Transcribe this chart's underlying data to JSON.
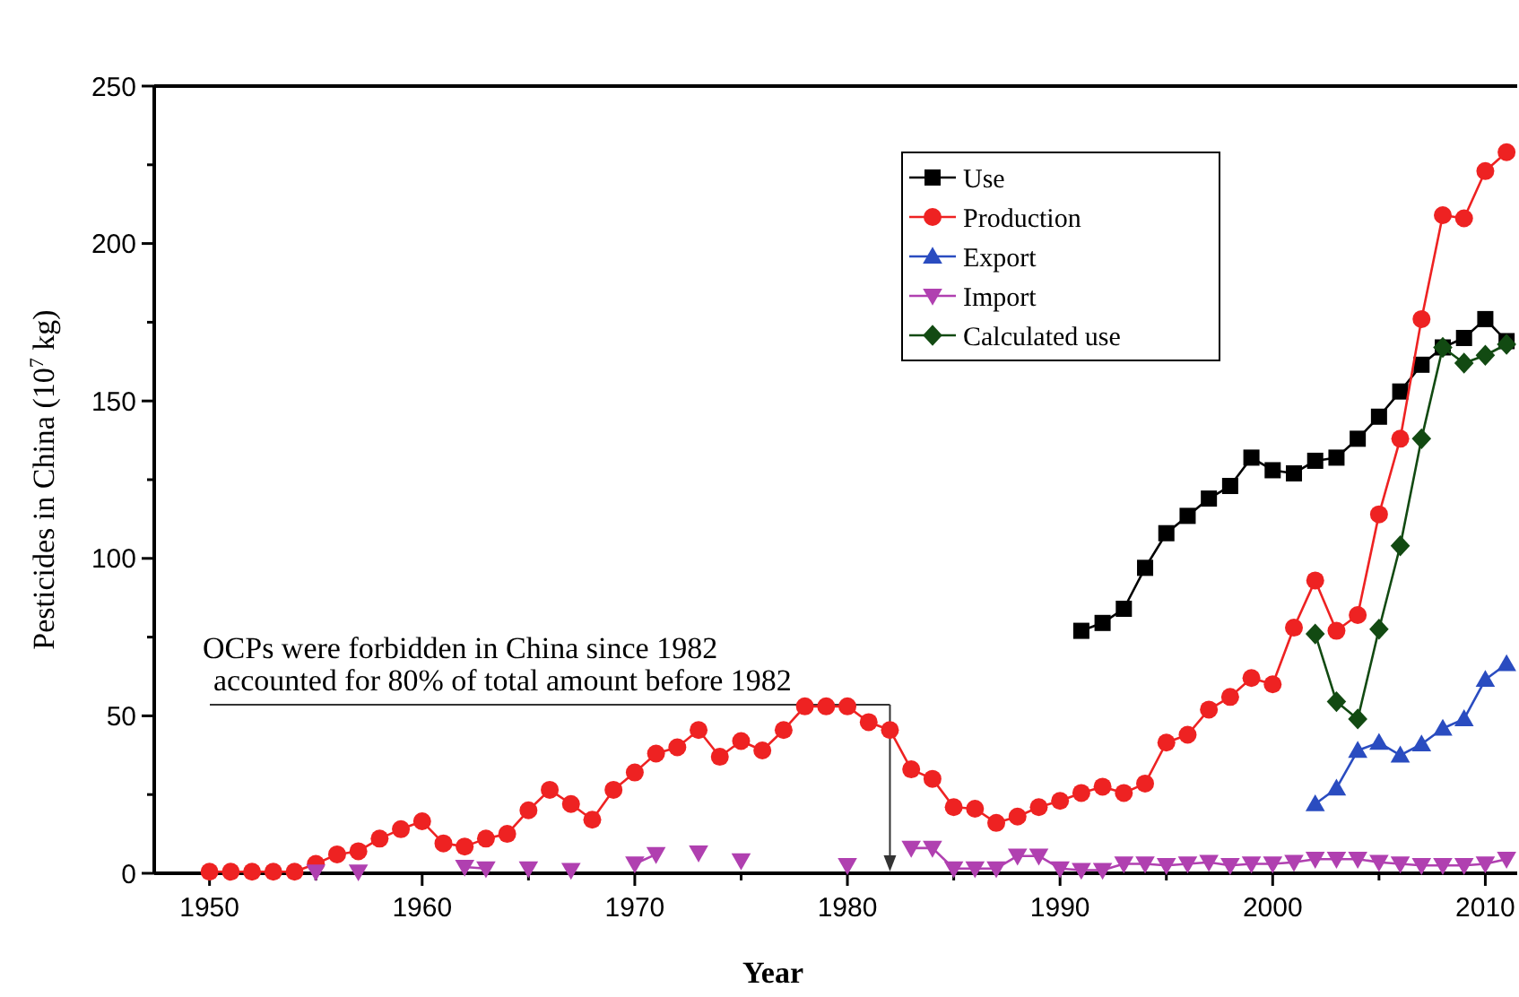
{
  "chart_data": {
    "type": "line",
    "xlabel": "Year",
    "ylabel": "Pesticides in China (10$^{7}$ kg)",
    "xlim": [
      1947.4,
      2011.5
    ],
    "ylim": [
      0,
      250
    ],
    "xticks": [
      1950,
      {
        "value": 1955,
        "label": null
      },
      1960,
      {
        "value": 1965,
        "label": null
      },
      1970,
      {
        "value": 1975,
        "label": null
      },
      1980,
      {
        "value": 1985,
        "label": null
      },
      1990,
      {
        "value": 1995,
        "label": null
      },
      2000,
      {
        "value": 2005,
        "label": null
      },
      2010
    ],
    "yticks": [
      0,
      {
        "value": 25,
        "label": null
      },
      50,
      {
        "value": 75,
        "label": null
      },
      100,
      {
        "value": 125,
        "label": null
      },
      150,
      {
        "value": 175,
        "label": null
      },
      200,
      {
        "value": 225,
        "label": null
      },
      250
    ],
    "legend": "top right",
    "grid": false,
    "line_style": "solid",
    "annotations": [
      "OCPs were forbidden in China since 1982",
      "accounted for 80% of total amount before 1982"
    ],
    "ref_lines": [
      {
        "axis": "x",
        "value": 1982,
        "color": "#333333"
      }
    ],
    "series": [
      {
        "name": "Use",
        "color": "#000000",
        "marker": "square",
        "x": [
          1991,
          1992,
          1993,
          1994,
          1995,
          1996,
          1997,
          1998,
          1999,
          2000,
          2001,
          2002,
          2003,
          2004,
          2005,
          2006,
          2007,
          2008,
          2009,
          2010,
          2011
        ],
        "values": [
          77,
          79.5,
          84,
          97,
          108,
          113.5,
          119,
          123,
          132,
          128,
          127,
          131,
          132,
          138,
          145,
          153,
          161.5,
          167,
          170,
          176,
          169
        ]
      },
      {
        "name": "Production",
        "color": "#ee2222",
        "marker": "circle",
        "x": [
          1950,
          1951,
          1952,
          1953,
          1954,
          1955,
          1956,
          1957,
          1958,
          1959,
          1960,
          1961,
          1962,
          1963,
          1964,
          1965,
          1966,
          1967,
          1968,
          1969,
          1970,
          1971,
          1972,
          1973,
          1974,
          1975,
          1976,
          1977,
          1978,
          1979,
          1980,
          1981,
          1982,
          1983,
          1984,
          1985,
          1986,
          1987,
          1988,
          1989,
          1990,
          1991,
          1992,
          1993,
          1994,
          1995,
          1996,
          1997,
          1998,
          1999,
          2000,
          2001,
          2002,
          2003,
          2004,
          2005,
          2006,
          2007,
          2008,
          2009,
          2010,
          2011
        ],
        "values": [
          0.5,
          0.5,
          0.5,
          0.5,
          0.5,
          3,
          6,
          7,
          11,
          14,
          16.5,
          9.5,
          8.5,
          11,
          12.5,
          20,
          26.5,
          22,
          17,
          26.5,
          32,
          38,
          40,
          45.5,
          37,
          42,
          39,
          45.5,
          53,
          53,
          53,
          48,
          45.5,
          33,
          30,
          21,
          20.5,
          16,
          18,
          21,
          23,
          25.5,
          27.5,
          25.5,
          28.5,
          41.5,
          44,
          52,
          56,
          62,
          60,
          78,
          93,
          77,
          82,
          114,
          138,
          176,
          209,
          208,
          223,
          229
        ]
      },
      {
        "name": "Export",
        "color": "#2a4cc0",
        "marker": "triangle",
        "x": [
          2002,
          2003,
          2004,
          2005,
          2006,
          2007,
          2008,
          2009,
          2010,
          2011
        ],
        "values": [
          22,
          27,
          39,
          41.5,
          37.5,
          41,
          46,
          49,
          61.5,
          66.5
        ]
      },
      {
        "name": "Import",
        "color": "#b040b0",
        "marker": "triangle-down",
        "x": [
          1955,
          1956,
          1957,
          1958,
          1959,
          1960,
          1961,
          1962,
          1963,
          1964,
          1965,
          1966,
          1967,
          1968,
          1969,
          1970,
          1971,
          1972,
          1973,
          1974,
          1975,
          1976,
          1977,
          1978,
          1979,
          1980,
          1981,
          1982,
          1983,
          1984,
          1985,
          1986,
          1987,
          1988,
          1989,
          1990,
          1991,
          1992,
          1993,
          1994,
          1995,
          1996,
          1997,
          1998,
          1999,
          2000,
          2001,
          2002,
          2003,
          2004,
          2005,
          2006,
          2007,
          2008,
          2009,
          2010,
          2011
        ],
        "values": [
          0.5,
          null,
          0.5,
          null,
          null,
          null,
          null,
          2,
          1.5,
          null,
          1.5,
          null,
          1,
          null,
          null,
          3,
          6,
          null,
          6.5,
          null,
          4,
          null,
          null,
          null,
          null,
          2.5,
          null,
          null,
          8,
          8,
          1.5,
          1.5,
          1.5,
          5.5,
          5.5,
          1.5,
          1,
          1,
          3,
          3,
          2.5,
          3,
          3.5,
          2.5,
          3,
          3,
          3.5,
          4.5,
          4.5,
          4.5,
          3.5,
          3,
          2.5,
          2.5,
          2.5,
          3,
          4.5
        ]
      },
      {
        "name": "Calculated use",
        "color": "#124a12",
        "marker": "diamond",
        "x": [
          2002,
          2003,
          2004,
          2005,
          2006,
          2007,
          2008,
          2009,
          2010,
          2011
        ],
        "values": [
          76,
          54.5,
          49,
          77.5,
          104,
          138,
          167,
          162,
          164.5,
          168
        ]
      }
    ]
  }
}
